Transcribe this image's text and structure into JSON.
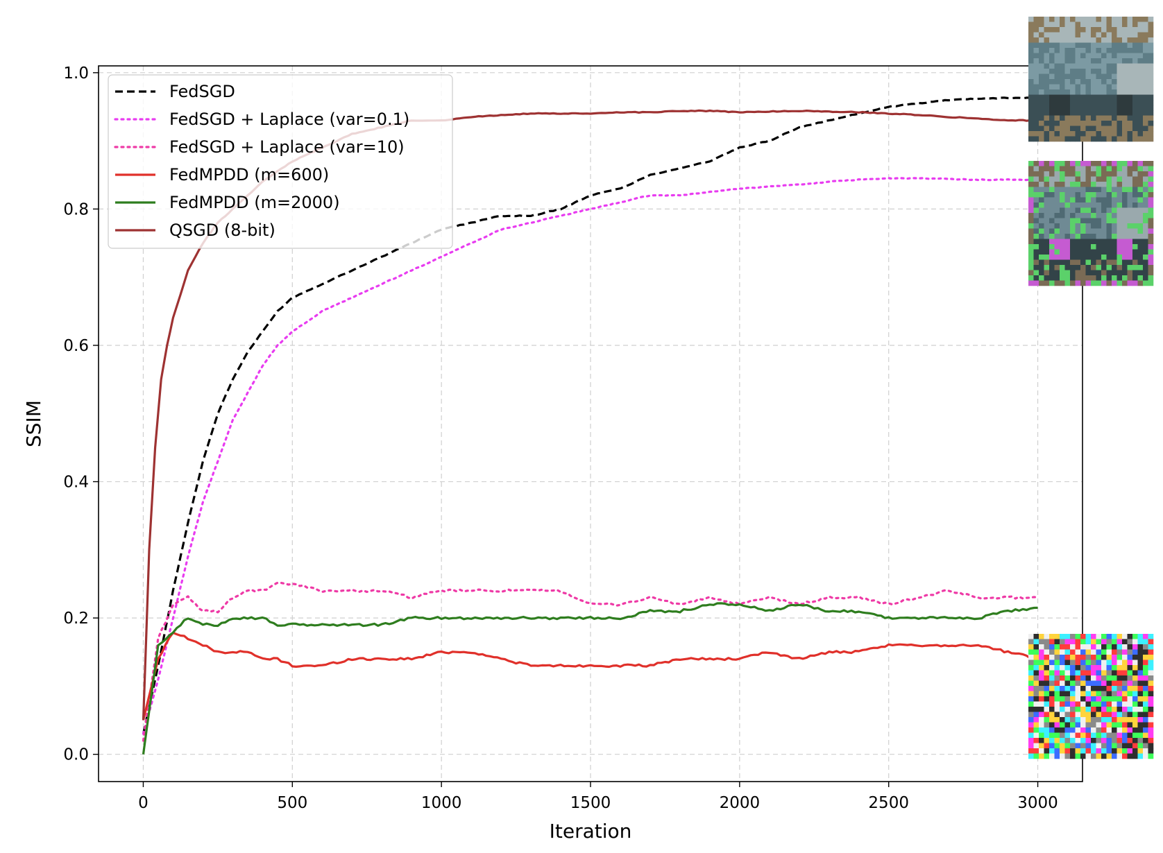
{
  "chart_data": {
    "type": "line",
    "title": "",
    "xlabel": "Iteration",
    "ylabel": "SSIM",
    "xlim": [
      -150,
      3150
    ],
    "ylim": [
      -0.04,
      1.01
    ],
    "xticks": [
      0,
      500,
      1000,
      1500,
      2000,
      2500,
      3000
    ],
    "yticks": [
      0.0,
      0.2,
      0.4,
      0.6,
      0.8,
      1.0
    ],
    "xtick_labels": [
      "0",
      "500",
      "1000",
      "1500",
      "2000",
      "2500",
      "3000"
    ],
    "ytick_labels": [
      "0.0",
      "0.2",
      "0.4",
      "0.6",
      "0.8",
      "1.0"
    ],
    "grid": true,
    "legend_position": "top-left",
    "series": [
      {
        "name": "FedSGD",
        "color": "#000000",
        "style": "dashed",
        "x": [
          0,
          50,
          100,
          150,
          200,
          250,
          300,
          350,
          400,
          450,
          500,
          600,
          700,
          800,
          900,
          1000,
          1100,
          1200,
          1300,
          1400,
          1500,
          1600,
          1700,
          1800,
          1900,
          2000,
          2100,
          2200,
          2300,
          2400,
          2500,
          2600,
          2700,
          2800,
          2900,
          3000
        ],
        "y": [
          0.03,
          0.13,
          0.24,
          0.34,
          0.43,
          0.5,
          0.55,
          0.59,
          0.62,
          0.65,
          0.67,
          0.69,
          0.71,
          0.73,
          0.75,
          0.77,
          0.78,
          0.79,
          0.79,
          0.8,
          0.82,
          0.83,
          0.85,
          0.86,
          0.87,
          0.89,
          0.9,
          0.92,
          0.93,
          0.94,
          0.95,
          0.955,
          0.96,
          0.962,
          0.963,
          0.963
        ]
      },
      {
        "name": "FedSGD + Laplace (var=0.1)",
        "color": "#e83cf0",
        "style": "dotted",
        "x": [
          0,
          50,
          100,
          150,
          200,
          250,
          300,
          350,
          400,
          450,
          500,
          600,
          700,
          800,
          900,
          1000,
          1100,
          1200,
          1300,
          1400,
          1500,
          1600,
          1700,
          1800,
          1900,
          2000,
          2100,
          2200,
          2300,
          2400,
          2500,
          2600,
          2700,
          2800,
          2900,
          3000
        ],
        "y": [
          0.03,
          0.11,
          0.2,
          0.29,
          0.37,
          0.43,
          0.49,
          0.53,
          0.57,
          0.6,
          0.62,
          0.65,
          0.67,
          0.69,
          0.71,
          0.73,
          0.75,
          0.77,
          0.78,
          0.79,
          0.8,
          0.81,
          0.82,
          0.82,
          0.825,
          0.83,
          0.833,
          0.836,
          0.84,
          0.843,
          0.845,
          0.845,
          0.844,
          0.843,
          0.843,
          0.843
        ]
      },
      {
        "name": "FedSGD + Laplace (var=10)",
        "color": "#ee3aa6",
        "style": "dotted",
        "x": [
          0,
          50,
          100,
          150,
          200,
          250,
          300,
          350,
          400,
          450,
          500,
          600,
          700,
          800,
          900,
          1000,
          1100,
          1200,
          1300,
          1400,
          1500,
          1600,
          1700,
          1800,
          1900,
          2000,
          2100,
          2200,
          2300,
          2400,
          2500,
          2600,
          2700,
          2800,
          2900,
          3000
        ],
        "y": [
          0.02,
          0.17,
          0.22,
          0.23,
          0.21,
          0.21,
          0.23,
          0.24,
          0.24,
          0.25,
          0.25,
          0.24,
          0.24,
          0.24,
          0.23,
          0.24,
          0.24,
          0.24,
          0.24,
          0.24,
          0.22,
          0.22,
          0.23,
          0.22,
          0.23,
          0.22,
          0.23,
          0.22,
          0.23,
          0.23,
          0.22,
          0.23,
          0.24,
          0.23,
          0.23,
          0.23
        ]
      },
      {
        "name": "FedMPDD (m=600)",
        "color": "#e0302a",
        "style": "solid",
        "x": [
          0,
          50,
          100,
          150,
          200,
          250,
          300,
          350,
          400,
          450,
          500,
          600,
          700,
          800,
          900,
          1000,
          1100,
          1200,
          1300,
          1400,
          1500,
          1600,
          1700,
          1800,
          1900,
          2000,
          2100,
          2200,
          2300,
          2400,
          2500,
          2600,
          2700,
          2800,
          2900,
          3000
        ],
        "y": [
          0.05,
          0.14,
          0.18,
          0.17,
          0.16,
          0.15,
          0.15,
          0.15,
          0.14,
          0.14,
          0.13,
          0.13,
          0.14,
          0.14,
          0.14,
          0.15,
          0.15,
          0.14,
          0.13,
          0.13,
          0.13,
          0.13,
          0.13,
          0.14,
          0.14,
          0.14,
          0.15,
          0.14,
          0.15,
          0.15,
          0.16,
          0.16,
          0.16,
          0.16,
          0.15,
          0.14
        ]
      },
      {
        "name": "FedMPDD (m=2000)",
        "color": "#2e7d1e",
        "style": "solid",
        "x": [
          0,
          50,
          100,
          150,
          200,
          250,
          300,
          350,
          400,
          450,
          500,
          600,
          700,
          800,
          900,
          1000,
          1100,
          1200,
          1300,
          1400,
          1500,
          1600,
          1700,
          1800,
          1900,
          2000,
          2100,
          2200,
          2300,
          2400,
          2500,
          2600,
          2700,
          2800,
          2900,
          3000
        ],
        "y": [
          0.0,
          0.16,
          0.18,
          0.2,
          0.19,
          0.19,
          0.2,
          0.2,
          0.2,
          0.19,
          0.19,
          0.19,
          0.19,
          0.19,
          0.2,
          0.2,
          0.2,
          0.2,
          0.2,
          0.2,
          0.2,
          0.2,
          0.21,
          0.21,
          0.22,
          0.22,
          0.21,
          0.22,
          0.21,
          0.21,
          0.2,
          0.2,
          0.2,
          0.2,
          0.21,
          0.215
        ]
      },
      {
        "name": "QSGD (8-bit)",
        "color": "#9e3232",
        "style": "solid",
        "x": [
          0,
          20,
          40,
          60,
          80,
          100,
          150,
          200,
          250,
          300,
          400,
          500,
          600,
          700,
          800,
          900,
          1000,
          1100,
          1200,
          1300,
          1400,
          1500,
          1600,
          1700,
          1800,
          1900,
          2000,
          2100,
          2200,
          2300,
          2400,
          2500,
          2600,
          2700,
          2800,
          2900,
          3000
        ],
        "y": [
          0.05,
          0.3,
          0.45,
          0.55,
          0.6,
          0.64,
          0.71,
          0.75,
          0.78,
          0.8,
          0.84,
          0.87,
          0.89,
          0.91,
          0.92,
          0.93,
          0.93,
          0.935,
          0.938,
          0.94,
          0.94,
          0.94,
          0.942,
          0.942,
          0.944,
          0.944,
          0.942,
          0.943,
          0.944,
          0.943,
          0.942,
          0.94,
          0.938,
          0.935,
          0.933,
          0.93,
          0.93
        ]
      }
    ]
  },
  "thumbnails": [
    {
      "name": "reconstruction-clean-car",
      "level": 0.96,
      "colors": [
        "#5e7d86",
        "#7c9aa3",
        "#3b4f55",
        "#a8b6b8",
        "#8a7a5c",
        "#2e3a3d"
      ]
    },
    {
      "name": "reconstruction-noisy-car",
      "level": 0.84,
      "colors": [
        "#4f6a73",
        "#6f8a94",
        "#324348",
        "#9aa9ad",
        "#7a6b55",
        "#c55bd1",
        "#5bd16a"
      ]
    },
    {
      "name": "reconstruction-noise",
      "level": 0.15,
      "colors": [
        "#ff3cf2",
        "#3cff5a",
        "#2e2e2e",
        "#f0f0f0",
        "#ffd43c",
        "#3c6cff",
        "#ff3c3c",
        "#3cf0ff",
        "#8a8a8a"
      ]
    }
  ]
}
